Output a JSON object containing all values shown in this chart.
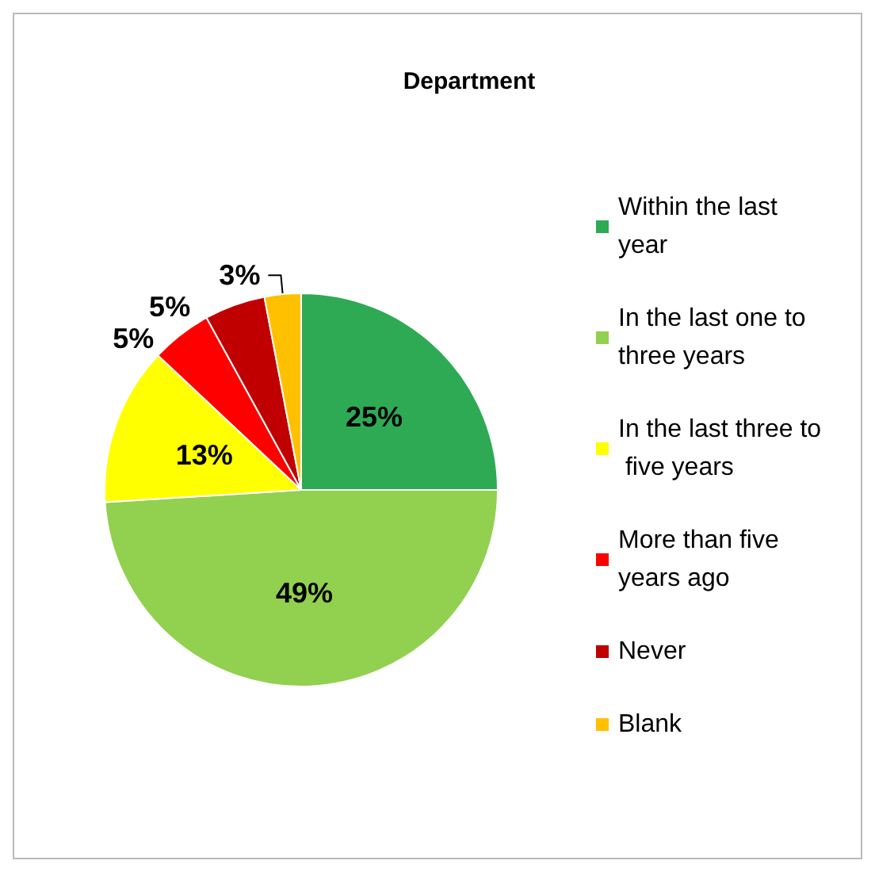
{
  "chart_data": {
    "type": "pie",
    "title": "Department",
    "categories": [
      "Within the last year",
      "In the last one to three years",
      "In the last three to five years",
      "More than five years ago",
      "Never",
      "Blank"
    ],
    "values": [
      25,
      49,
      13,
      5,
      5,
      3
    ],
    "colors": [
      "#2eaa55",
      "#92d050",
      "#ffff00",
      "#ff0000",
      "#c00000",
      "#ffc000"
    ],
    "value_labels": [
      "25%",
      "49%",
      "13%",
      "5%",
      "5%",
      "3%"
    ],
    "legend": "right"
  }
}
